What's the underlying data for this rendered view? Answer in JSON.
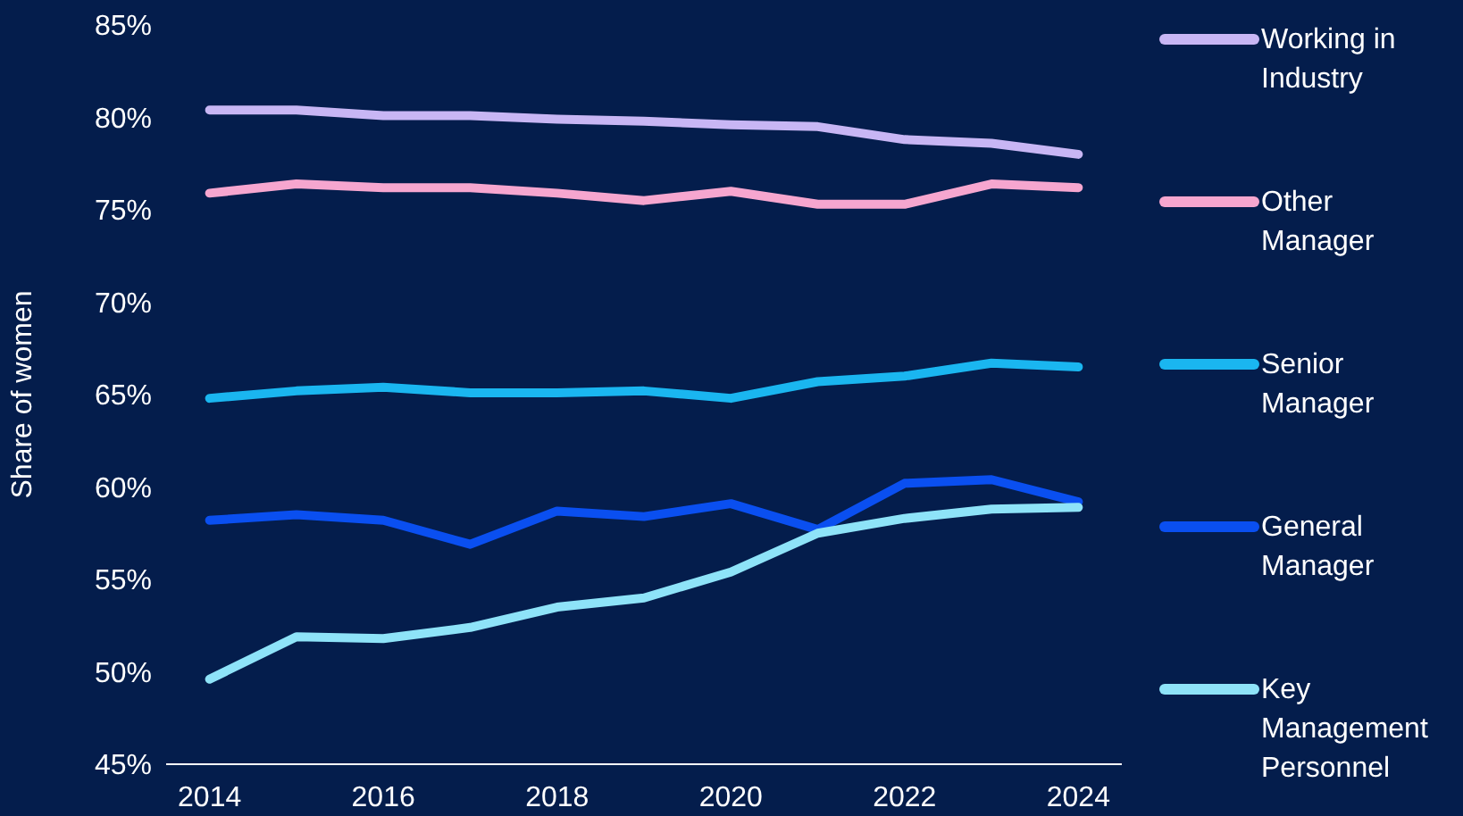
{
  "chart_data": {
    "type": "line",
    "ylabel": "Share of women",
    "x": [
      2014,
      2015,
      2016,
      2017,
      2018,
      2019,
      2020,
      2021,
      2022,
      2023,
      2024
    ],
    "xlim": [
      2013.5,
      2024.5
    ],
    "xticks": [
      2014,
      2016,
      2018,
      2020,
      2022,
      2024
    ],
    "ylim": [
      45,
      85
    ],
    "yticks": [
      {
        "value": 45,
        "label": "45%"
      },
      {
        "value": 50,
        "label": "50%"
      },
      {
        "value": 55,
        "label": "55%"
      },
      {
        "value": 60,
        "label": "60%"
      },
      {
        "value": 65,
        "label": "65%"
      },
      {
        "value": 70,
        "label": "70%"
      },
      {
        "value": 75,
        "label": "75%"
      },
      {
        "value": 80,
        "label": "80%"
      },
      {
        "value": 85,
        "label": "85%"
      }
    ],
    "grid": false,
    "legend": "right",
    "marker": "none",
    "line_style": "solid",
    "series": [
      {
        "name": "Working in Industry",
        "color": "#c8b6f4",
        "values": [
          80.4,
          80.4,
          80.1,
          80.1,
          79.9,
          79.8,
          79.6,
          79.5,
          78.8,
          78.6,
          78.0
        ]
      },
      {
        "name": "Other Manager",
        "color": "#f6a6cf",
        "values": [
          75.9,
          76.4,
          76.2,
          76.2,
          75.9,
          75.5,
          76.0,
          75.3,
          75.3,
          76.4,
          76.2
        ]
      },
      {
        "name": "Senior Manager",
        "color": "#1ab6f0",
        "values": [
          64.8,
          65.2,
          65.4,
          65.1,
          65.1,
          65.2,
          64.8,
          65.7,
          66.0,
          66.7,
          66.5
        ]
      },
      {
        "name": "General Manager",
        "color": "#0a4ff0",
        "values": [
          58.2,
          58.5,
          58.2,
          56.9,
          58.7,
          58.4,
          59.1,
          57.7,
          60.2,
          60.4,
          59.2
        ]
      },
      {
        "name": "Key Management Personnel",
        "color": "#8ee3f8",
        "values": [
          49.6,
          51.9,
          51.8,
          52.4,
          53.5,
          54.0,
          55.4,
          57.5,
          58.3,
          58.8,
          58.9
        ]
      }
    ]
  }
}
